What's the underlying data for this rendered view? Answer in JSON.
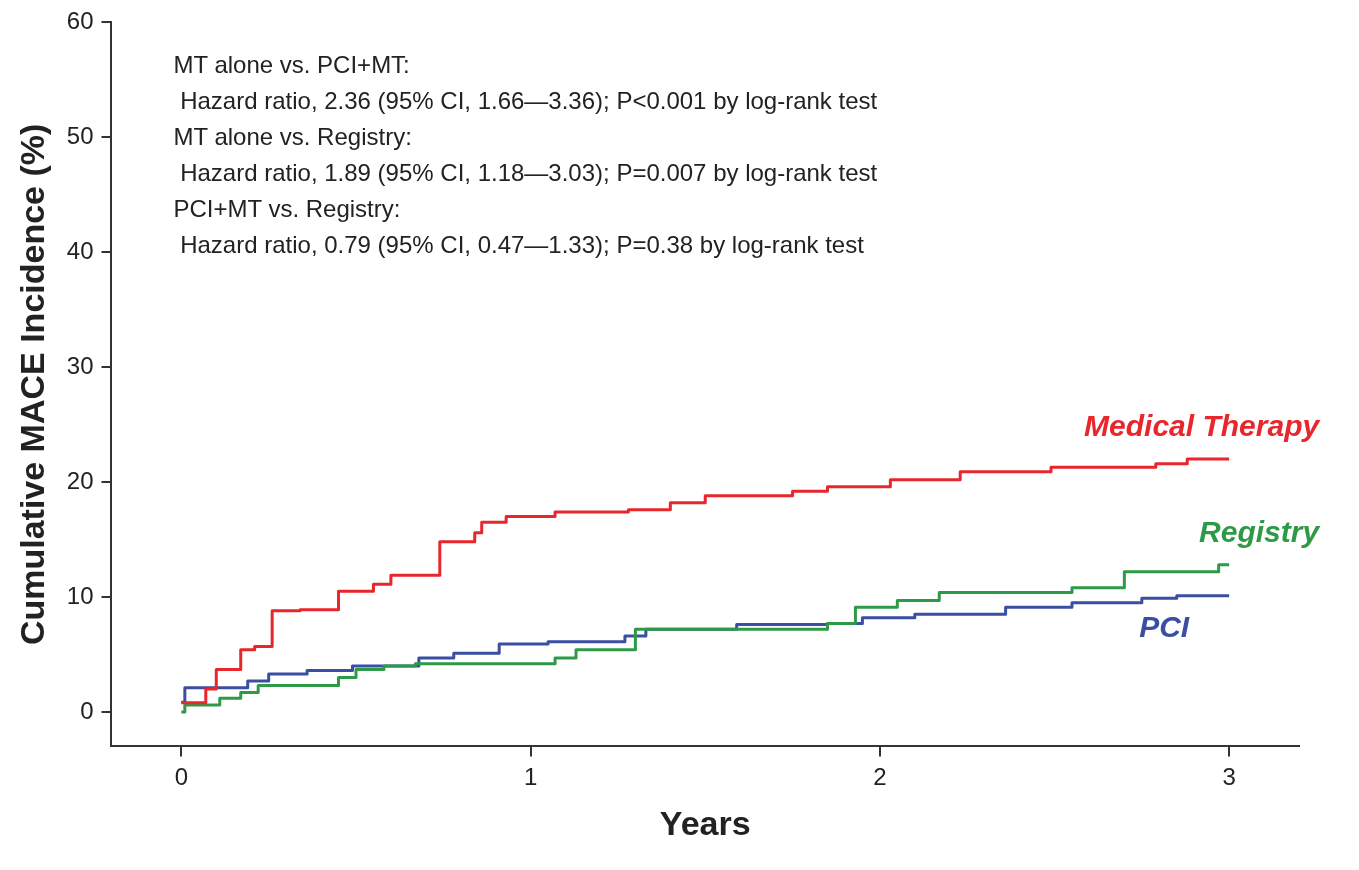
{
  "chart_data": {
    "type": "step",
    "xlabel": "Years",
    "ylabel": "Cumulative MACE Incidence (%)",
    "xlim": [
      -0.2,
      3.2
    ],
    "xticks": [
      0,
      1,
      2,
      3
    ],
    "ylim": [
      -3,
      60
    ],
    "yticks": [
      0,
      10,
      20,
      30,
      40,
      50,
      60
    ],
    "grid": false,
    "legend": false,
    "annotations": [
      "MT alone vs. PCI+MT:",
      " Hazard ratio, 2.36 (95% CI, 1.66—3.36); P<0.001 by log-rank test",
      "MT alone vs. Registry:",
      " Hazard ratio, 1.89 (95% CI, 1.18—3.03); P=0.007 by log-rank test",
      "PCI+MT vs. Registry:",
      " Hazard ratio, 0.79 (95% CI, 0.47—1.33); P=0.38 by log-rank test"
    ],
    "series": [
      {
        "name": "Medical Therapy",
        "color": "#e8262b",
        "x": [
          0,
          0.07,
          0.1,
          0.17,
          0.21,
          0.26,
          0.34,
          0.45,
          0.55,
          0.6,
          0.74,
          0.84,
          0.86,
          0.93,
          1.07,
          1.28,
          1.4,
          1.5,
          1.75,
          1.85,
          2.03,
          2.23,
          2.49,
          2.79,
          2.88,
          3.0
        ],
        "values": [
          0.8,
          2.0,
          3.7,
          5.4,
          5.7,
          8.8,
          8.9,
          10.5,
          11.1,
          11.9,
          14.8,
          15.6,
          16.5,
          17.0,
          17.4,
          17.6,
          18.2,
          18.8,
          19.2,
          19.6,
          20.2,
          20.9,
          21.3,
          21.6,
          22.0,
          22.0
        ]
      },
      {
        "name": "Registry",
        "color": "#2e9a48",
        "x": [
          0,
          0.01,
          0.11,
          0.17,
          0.22,
          0.45,
          0.5,
          0.58,
          0.67,
          1.07,
          1.13,
          1.3,
          1.85,
          1.93,
          2.05,
          2.17,
          2.55,
          2.7,
          2.97,
          3.0
        ],
        "values": [
          0,
          0.6,
          1.2,
          1.7,
          2.3,
          3.0,
          3.7,
          4.0,
          4.2,
          4.7,
          5.4,
          7.2,
          7.7,
          9.1,
          9.7,
          10.4,
          10.8,
          12.2,
          12.8,
          12.8
        ]
      },
      {
        "name": "PCI",
        "color": "#3a4fa3",
        "x": [
          0,
          0.01,
          0.19,
          0.25,
          0.36,
          0.49,
          0.68,
          0.78,
          0.91,
          1.05,
          1.27,
          1.33,
          1.59,
          1.85,
          1.95,
          2.1,
          2.36,
          2.55,
          2.75,
          2.85,
          3.0
        ],
        "values": [
          0.85,
          2.1,
          2.7,
          3.3,
          3.6,
          4.0,
          4.7,
          5.1,
          5.9,
          6.1,
          6.6,
          7.2,
          7.6,
          7.7,
          8.2,
          8.5,
          9.1,
          9.5,
          9.9,
          10.1,
          10.1
        ]
      }
    ]
  }
}
